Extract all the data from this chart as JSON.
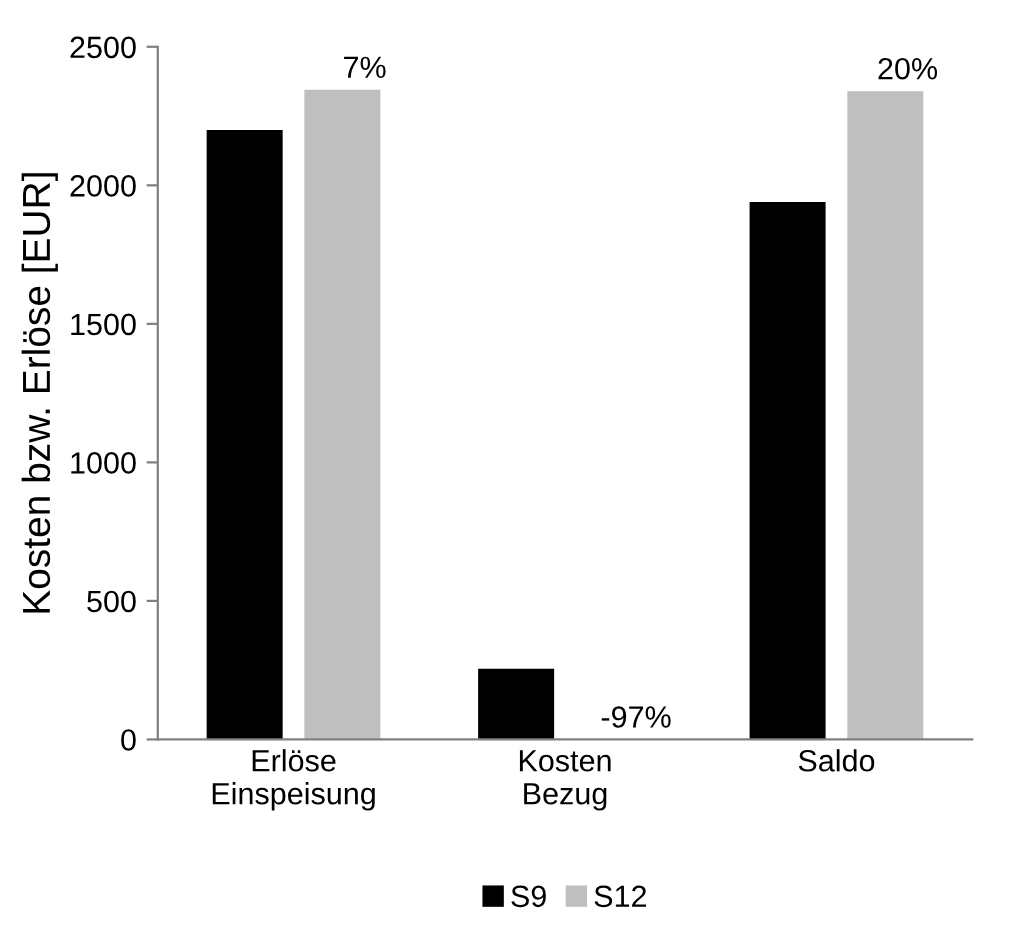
{
  "chart_data": {
    "type": "bar",
    "ylabel": "Kosten bzw. Erlöse [EUR]",
    "categories": [
      "Erlöse\nEinspeisung",
      "Kosten\nBezug",
      "Saldo"
    ],
    "series": [
      {
        "name": "S9",
        "color": "#000000",
        "values": [
          2200,
          255,
          1940
        ]
      },
      {
        "name": "S12",
        "color": "#bfbfbf",
        "values": [
          2345,
          null,
          2340
        ]
      }
    ],
    "annotations": [
      "7%",
      "-97%",
      "20%"
    ],
    "ylim": [
      0,
      2500
    ],
    "yticks": [
      0,
      500,
      1000,
      1500,
      2000,
      2500
    ],
    "grid": false,
    "legend": "bottom"
  }
}
